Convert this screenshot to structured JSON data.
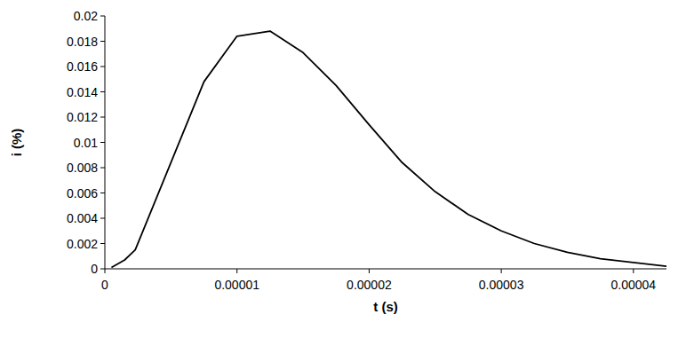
{
  "chart_data": {
    "type": "line",
    "x_label": "t (s)",
    "y_label": "i (%)",
    "x": [
      5e-07,
      1.5e-06,
      2e-06,
      2.3e-06,
      7.5e-06,
      1e-05,
      1.25e-05,
      1.5e-05,
      1.75e-05,
      2e-05,
      2.25e-05,
      2.5e-05,
      2.75e-05,
      3e-05,
      3.25e-05,
      3.5e-05,
      3.75e-05,
      4e-05,
      4.25e-05
    ],
    "series": [
      {
        "color": "#000000",
        "values": [
          0.0001,
          0.0007,
          0.0012,
          0.0015,
          0.0148,
          0.0184,
          0.0188,
          0.0171,
          0.0145,
          0.0114,
          0.0084,
          0.0061,
          0.0043,
          0.003,
          0.002,
          0.0013,
          0.0008,
          0.0005,
          0.0002
        ]
      }
    ],
    "xlim": [
      0,
      4.25e-05
    ],
    "xticks": [
      0,
      1e-05,
      2e-05,
      3e-05,
      4e-05
    ],
    "ylim": [
      0,
      0.02
    ],
    "yticks": [
      0,
      0.002,
      0.004,
      0.006,
      0.008,
      0.01,
      0.012,
      0.014,
      0.016,
      0.018,
      0.02
    ],
    "grid": false
  }
}
